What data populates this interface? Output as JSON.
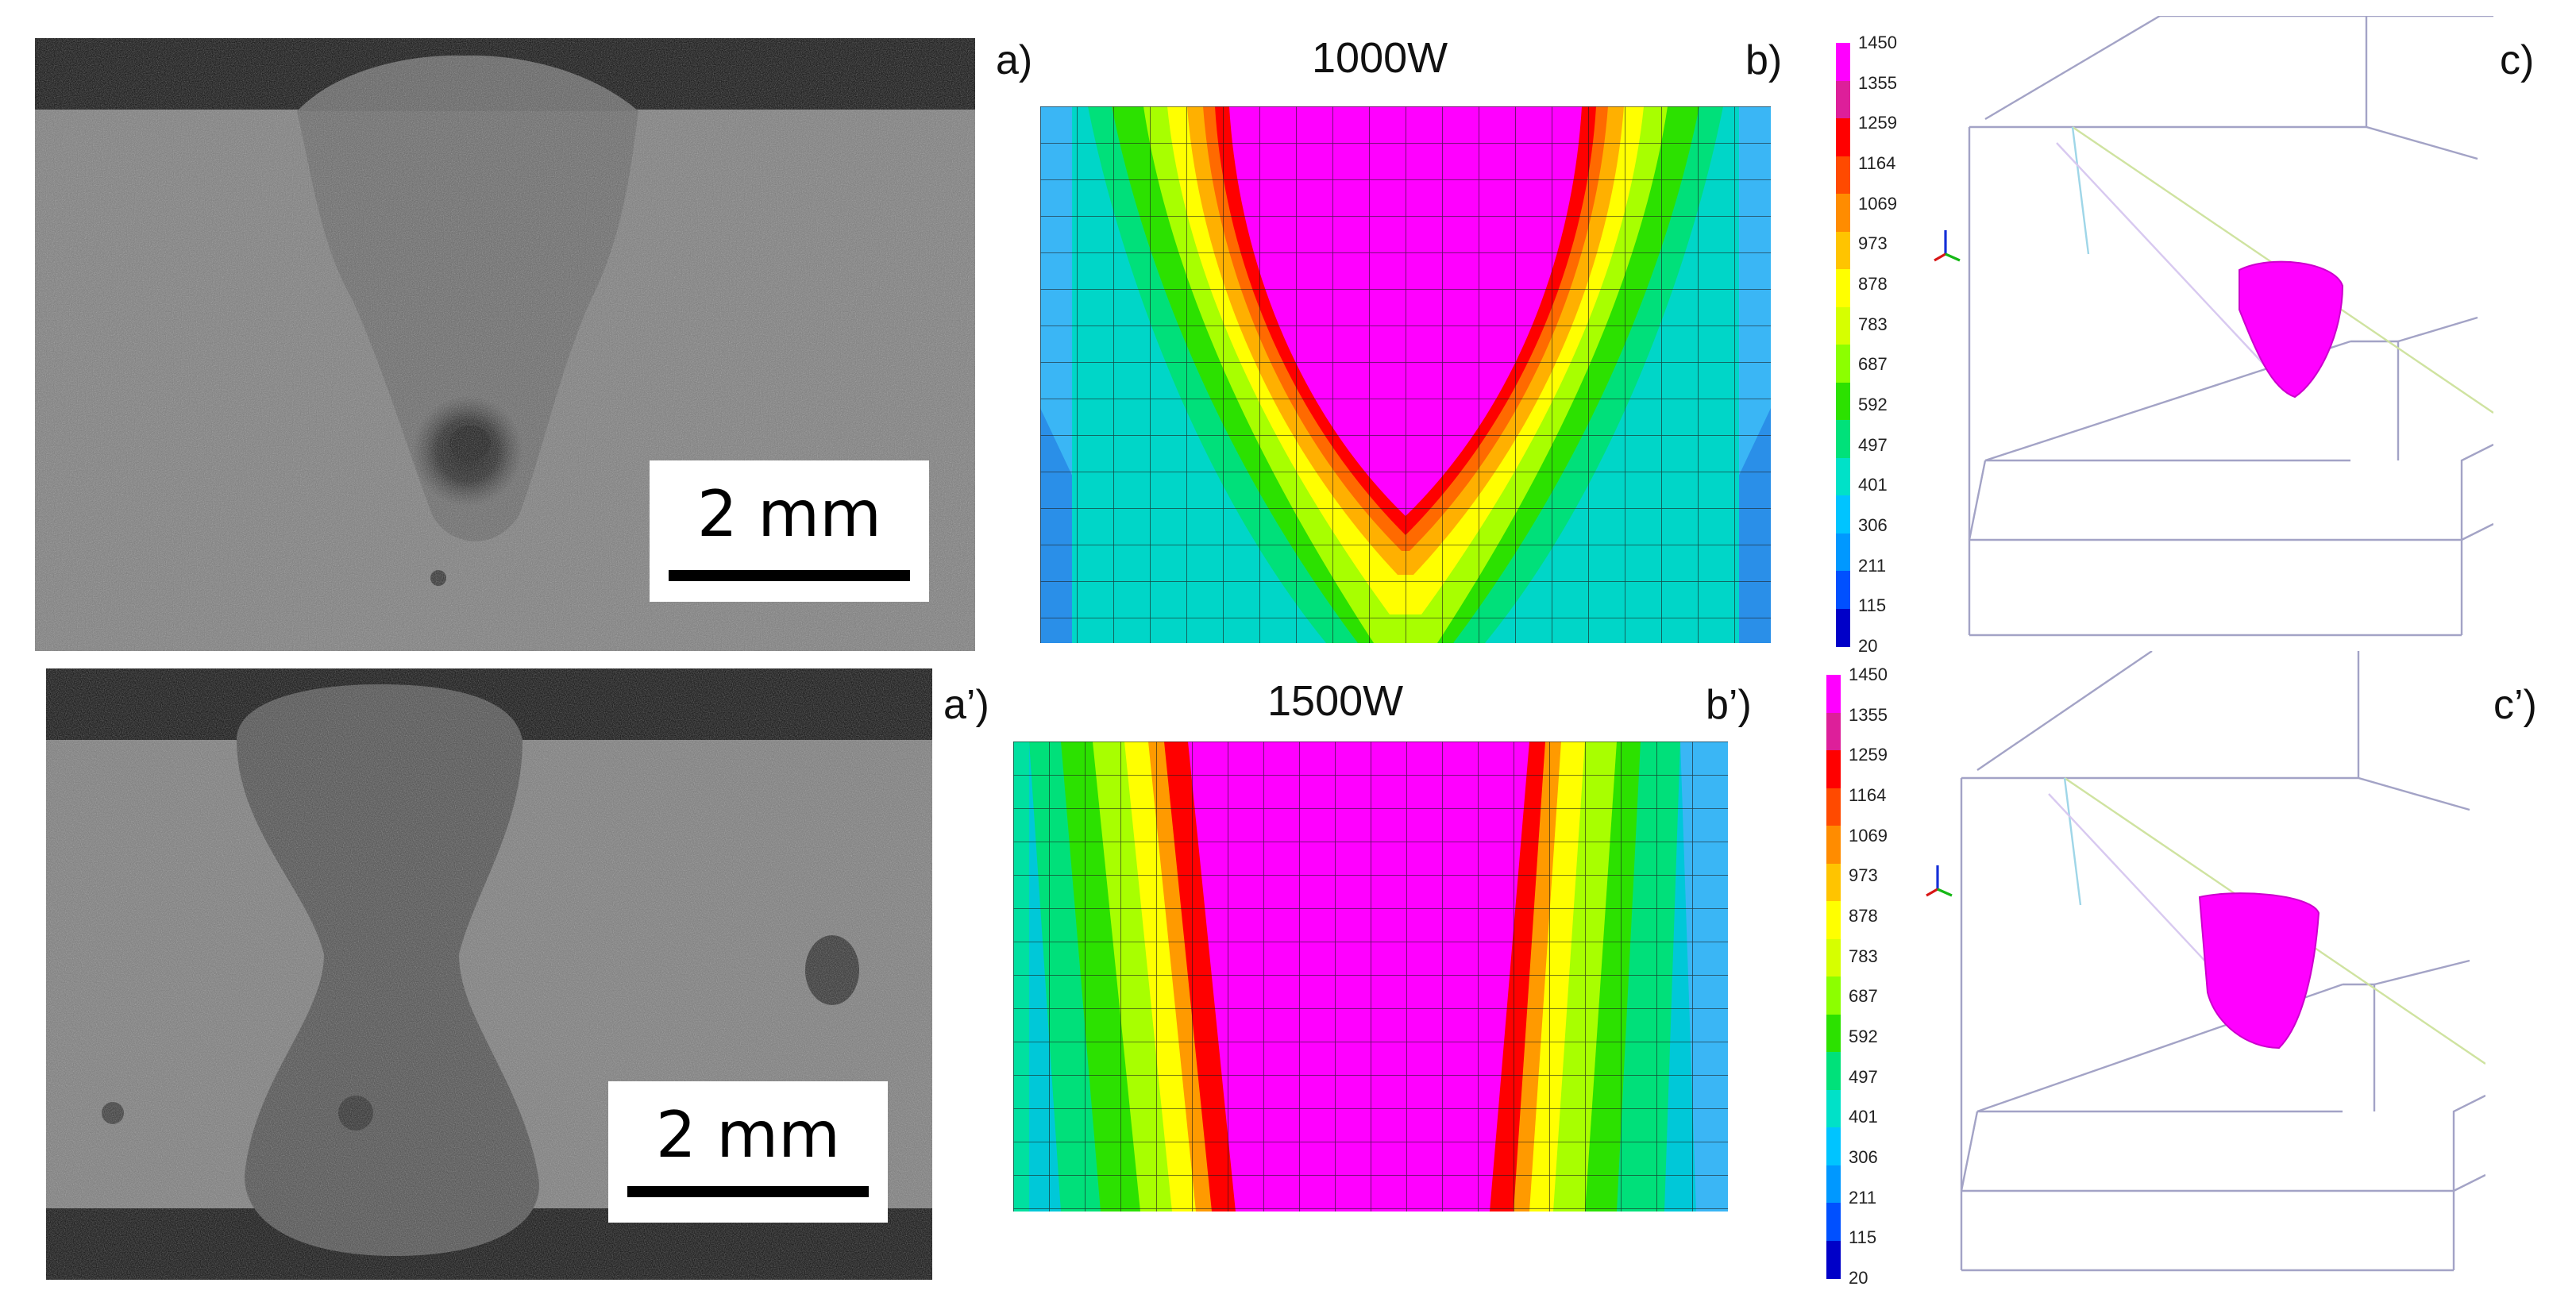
{
  "panels": {
    "a": {
      "label": "a)"
    },
    "a2": {
      "label": "a’)"
    },
    "b": {
      "label": "b)",
      "title": "1000W"
    },
    "b2": {
      "label": "b’)",
      "title": "1500W"
    },
    "c": {
      "label": "c)"
    },
    "c2": {
      "label": "c’)"
    }
  },
  "scale_bar": {
    "text": "2 mm"
  },
  "legend": {
    "ticks": [
      "1450",
      "1355",
      "1259",
      "1164",
      "1069",
      "973",
      "878",
      "783",
      "687",
      "592",
      "497",
      "401",
      "306",
      "211",
      "115",
      "20"
    ],
    "colors": [
      "#ff00ff",
      "#dd1f9a",
      "#ff0000",
      "#ff4a00",
      "#ff8c00",
      "#ffc400",
      "#ffff00",
      "#d6ff00",
      "#8cff00",
      "#2ce100",
      "#00e17a",
      "#00e1c8",
      "#00c4ff",
      "#0098ff",
      "#0050ff",
      "#0000c8"
    ]
  },
  "colors": {
    "melt": "#ff00ff",
    "fusion_boundary": "#ff0000",
    "background": "#ffffff"
  }
}
